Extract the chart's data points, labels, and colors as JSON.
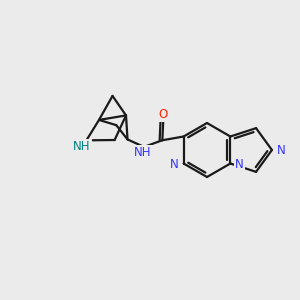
{
  "bg_color": "#ebebeb",
  "bond_color": "#1a1a1a",
  "n_color": "#3333ff",
  "o_color": "#ff2200",
  "nh_bic_color": "#008080",
  "line_width": 1.6,
  "font_size": 8.5,
  "figsize": [
    3.0,
    3.0
  ],
  "dpi": 100,
  "xlim": [
    0,
    10
  ],
  "ylim": [
    0,
    10
  ]
}
